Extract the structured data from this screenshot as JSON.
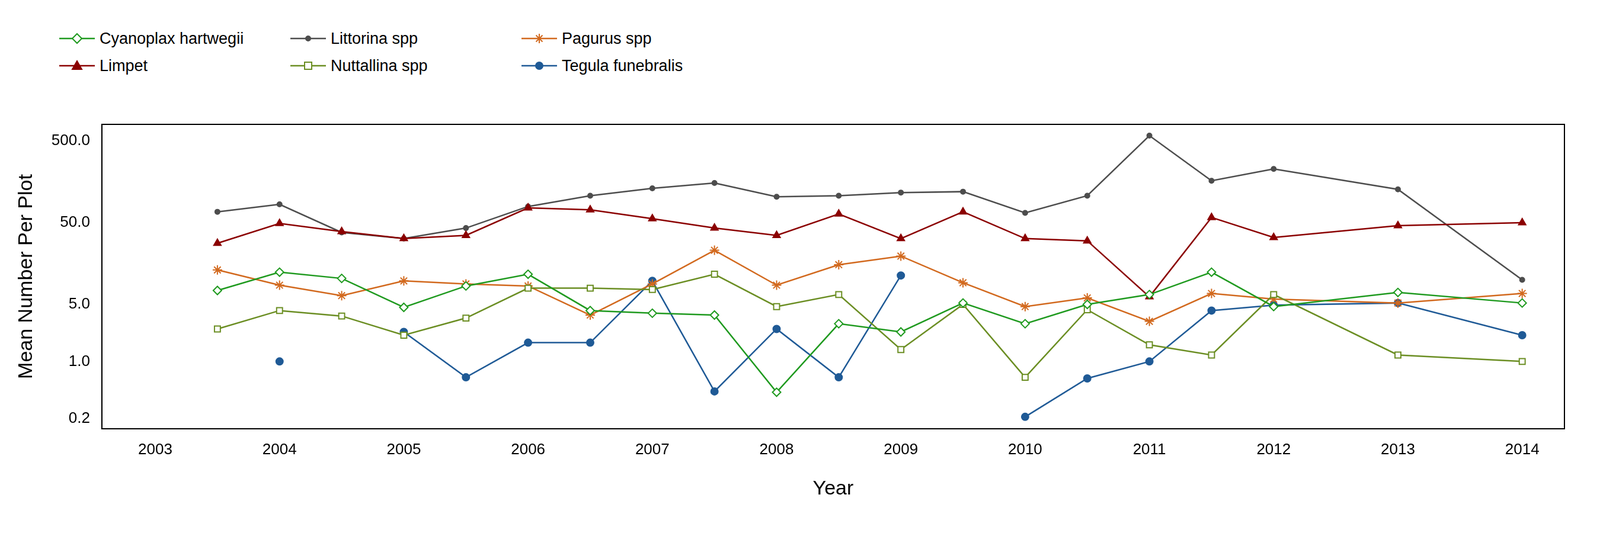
{
  "chart_data": {
    "type": "line",
    "x_label": "Year",
    "y_label": "Mean Number Per Plot",
    "log": "y",
    "grid": false,
    "legend": "top-left",
    "x": [
      2003.5,
      2004,
      2004.5,
      2005,
      2005.5,
      2006,
      2006.5,
      2007,
      2007.5,
      2008,
      2008.5,
      2009,
      2009.5,
      2010,
      2010.5,
      2011,
      2011.5,
      2012,
      2013,
      2014
    ],
    "xlim": [
      2002.57,
      2014.34
    ],
    "xticks": [
      2003,
      2004,
      2005,
      2006,
      2007,
      2008,
      2009,
      2010,
      2011,
      2012,
      2013,
      2014
    ],
    "ylim": [
      0.15,
      800
    ],
    "yticks": [
      0.2,
      {
        "value": 1,
        "label": "1.0"
      },
      {
        "value": 5,
        "label": "5.0"
      },
      {
        "value": 50,
        "label": "50.0"
      },
      {
        "value": 500,
        "label": "500.0"
      }
    ],
    "series": [
      {
        "name": "Cyanoplax hartwegii",
        "color": "#1f9a1f",
        "marker": "open_diamond",
        "values": [
          7.4,
          12.4,
          10.4,
          4.6,
          8.4,
          11.7,
          4.2,
          3.9,
          3.7,
          0.42,
          2.9,
          2.3,
          5.2,
          2.9,
          5.0,
          6.6,
          12.4,
          4.7,
          7.0,
          5.2
        ]
      },
      {
        "name": "Limpet",
        "color": "#8b0000",
        "marker": "filled_triangle",
        "values": [
          28,
          49,
          39,
          32,
          35,
          76,
          72,
          56,
          43,
          35,
          64,
          32,
          68,
          32,
          30,
          6.2,
          58,
          33,
          46,
          50
        ]
      },
      {
        "name": "Littorina spp",
        "color": "#4d4d4d",
        "marker": "small_circle",
        "values": [
          68,
          84,
          38,
          32,
          43,
          79,
          107,
          132,
          153,
          104,
          107,
          117,
          120,
          66,
          107,
          582,
          163,
          228,
          128,
          10
        ]
      },
      {
        "name": "Nuttallina spp",
        "color": "#6b8e23",
        "marker": "open_square",
        "values": [
          2.5,
          4.2,
          3.6,
          2.1,
          3.4,
          7.9,
          7.9,
          7.6,
          11.7,
          4.7,
          6.6,
          1.4,
          5.0,
          0.64,
          4.3,
          1.6,
          1.2,
          6.6,
          1.2,
          1.0
        ]
      },
      {
        "name": "Pagurus spp",
        "color": "#d2691e",
        "marker": "star",
        "values": [
          13.2,
          8.6,
          6.4,
          9.7,
          8.9,
          8.4,
          3.7,
          8.9,
          23,
          8.6,
          15.3,
          19.5,
          9.2,
          4.7,
          6.0,
          3.1,
          6.8,
          5.8,
          5.2,
          6.8
        ]
      },
      {
        "name": "Tegula funebralis",
        "color": "#1f5a96",
        "marker": "filled_circle",
        "values": [
          null,
          1.0,
          null,
          2.3,
          0.64,
          1.7,
          1.7,
          9.7,
          0.43,
          2.5,
          0.64,
          11.3,
          null,
          0.21,
          0.62,
          1.0,
          4.2,
          4.9,
          5.2,
          2.1
        ]
      }
    ]
  }
}
